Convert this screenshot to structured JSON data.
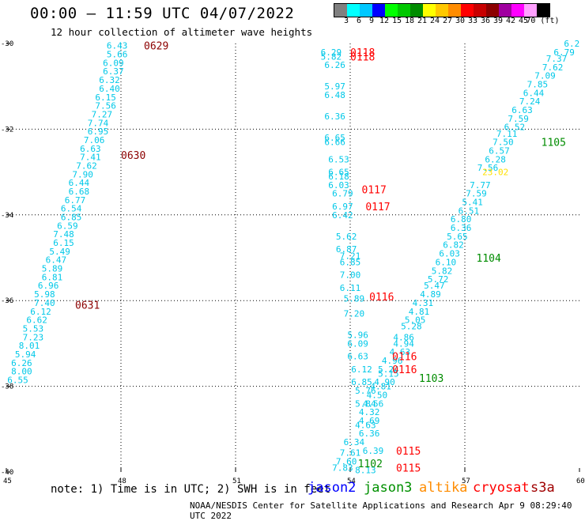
{
  "header": {
    "title": "00:00 – 11:59 UTC 04/07/2022",
    "subtitle": "12 hour collection of altimeter wave heights"
  },
  "colorbar": {
    "colors": [
      "#808080",
      "#00ffff",
      "#00c8ff",
      "#0000ff",
      "#00ff00",
      "#00c800",
      "#008c00",
      "#ffff00",
      "#ffc800",
      "#ff8c00",
      "#ff0000",
      "#c80000",
      "#8c0000",
      "#a000a0",
      "#ff00ff",
      "#ffa0ff",
      "#000000"
    ],
    "labels": [
      "3",
      "6",
      "9",
      "12",
      "15",
      "18",
      "21",
      "24",
      "27",
      "30",
      "33",
      "36",
      "39",
      "42",
      "45",
      "70 (ft)"
    ]
  },
  "footer": {
    "note": "note:  1) Time is in UTC;  2) SWH is in feet",
    "credit": "NOAA/NESDIS Center for Satellite Applications and Research   Apr  9 08:29:40 UTC 2022",
    "legend": [
      {
        "label": "jason2",
        "color": "#0000ff"
      },
      {
        "label": "jason3",
        "color": "#009000"
      },
      {
        "label": "altika",
        "color": "#ff8c00"
      },
      {
        "label": "cryosat",
        "color": "#ff0000"
      },
      {
        "label": "s3a",
        "color": "#a00000"
      }
    ]
  },
  "chart_data": {
    "type": "scatter",
    "xlim": [
      45,
      60
    ],
    "ylim": [
      -40,
      -30
    ],
    "x_ticks": [
      "45",
      "48",
      "51",
      "54",
      "57",
      "60"
    ],
    "y_ticks": [
      "-30",
      "-32",
      "-34",
      "-36",
      "-38",
      "-40"
    ],
    "grid": true,
    "colors": {
      "low": "#00c8e8",
      "mid": "#ffe000",
      "s3a": "#8c0000",
      "cryosat": "#ff0000",
      "jason3": "#008c00"
    },
    "time_labels": [
      {
        "text": "0629",
        "x": 48.6,
        "y": -30.05,
        "sat": "s3a"
      },
      {
        "text": "0630",
        "x": 48.0,
        "y": -32.6,
        "sat": "s3a"
      },
      {
        "text": "0631",
        "x": 46.8,
        "y": -36.1,
        "sat": "s3a"
      },
      {
        "text": "0118",
        "x": 54.0,
        "y": -30.2,
        "sat": "cryosat"
      },
      {
        "text": "0118",
        "x": 54.0,
        "y": -30.3,
        "sat": "cryosat"
      },
      {
        "text": "0117",
        "x": 54.3,
        "y": -33.4,
        "sat": "cryosat"
      },
      {
        "text": "0117",
        "x": 54.4,
        "y": -33.8,
        "sat": "cryosat"
      },
      {
        "text": "0116",
        "x": 54.5,
        "y": -35.9,
        "sat": "cryosat"
      },
      {
        "text": "0116",
        "x": 55.1,
        "y": -37.3,
        "sat": "cryosat"
      },
      {
        "text": "0116",
        "x": 55.1,
        "y": -37.6,
        "sat": "cryosat"
      },
      {
        "text": "0115",
        "x": 55.2,
        "y": -39.5,
        "sat": "cryosat"
      },
      {
        "text": "0115",
        "x": 55.2,
        "y": -39.9,
        "sat": "cryosat"
      },
      {
        "text": "1105",
        "x": 59.0,
        "y": -32.3,
        "sat": "jason3"
      },
      {
        "text": "1104",
        "x": 57.3,
        "y": -35.0,
        "sat": "jason3"
      },
      {
        "text": "1103",
        "x": 55.8,
        "y": -37.8,
        "sat": "jason3"
      },
      {
        "text": "1102",
        "x": 54.2,
        "y": -39.8,
        "sat": "jason3"
      }
    ],
    "tracks": [
      {
        "sat": "s3a",
        "points": [
          [
            "6.43",
            47.9,
            -30.05
          ],
          [
            "5.66",
            47.9,
            -30.25
          ],
          [
            "6.09",
            47.8,
            -30.45
          ],
          [
            "6.37",
            47.8,
            -30.65
          ],
          [
            "6.32",
            47.7,
            -30.85
          ],
          [
            "6.40",
            47.7,
            -31.05
          ],
          [
            "6.15",
            47.6,
            -31.25
          ],
          [
            "7.56",
            47.6,
            -31.45
          ],
          [
            "7.27",
            47.5,
            -31.65
          ],
          [
            "7.74",
            47.4,
            -31.85
          ],
          [
            "6.95",
            47.4,
            -32.05
          ],
          [
            "7.06",
            47.3,
            -32.25
          ],
          [
            "6.63",
            47.2,
            -32.45
          ],
          [
            "7.41",
            47.2,
            -32.65
          ],
          [
            "7.62",
            47.1,
            -32.85
          ],
          [
            "7.90",
            47.0,
            -33.05
          ],
          [
            "6.44",
            46.9,
            -33.25
          ],
          [
            "6.68",
            46.9,
            -33.45
          ],
          [
            "6.77",
            46.8,
            -33.65
          ],
          [
            "6.54",
            46.7,
            -33.85
          ],
          [
            "6.85",
            46.7,
            -34.05
          ],
          [
            "6.59",
            46.6,
            -34.25
          ],
          [
            "7.48",
            46.5,
            -34.45
          ],
          [
            "6.15",
            46.5,
            -34.65
          ],
          [
            "5.49",
            46.4,
            -34.85
          ],
          [
            "6.47",
            46.3,
            -35.05
          ],
          [
            "5.89",
            46.2,
            -35.25
          ],
          [
            "6.81",
            46.2,
            -35.45
          ],
          [
            "6.96",
            46.1,
            -35.65
          ],
          [
            "5.98",
            46.0,
            -35.85
          ],
          [
            "7.40",
            46.0,
            -36.05
          ],
          [
            "6.12",
            45.9,
            -36.25
          ],
          [
            "6.62",
            45.8,
            -36.45
          ],
          [
            "5.53",
            45.7,
            -36.65
          ],
          [
            "7.23",
            45.7,
            -36.85
          ],
          [
            "8.01",
            45.6,
            -37.05
          ],
          [
            "5.94",
            45.5,
            -37.25
          ],
          [
            "6.26",
            45.4,
            -37.45
          ],
          [
            "8.00",
            45.4,
            -37.65
          ],
          [
            "6.55",
            45.3,
            -37.85
          ]
        ]
      },
      {
        "sat": "cryosat",
        "points": [
          [
            "6.29",
            53.5,
            -30.2
          ],
          [
            "5.82",
            53.5,
            -30.3
          ],
          [
            "6.26",
            53.6,
            -30.5
          ],
          [
            "5.97",
            53.6,
            -31.0
          ],
          [
            "6.48",
            53.6,
            -31.2
          ],
          [
            "6.36",
            53.6,
            -31.7
          ],
          [
            "6.65",
            53.6,
            -32.2
          ],
          [
            "6.66",
            53.6,
            -32.3
          ],
          [
            "6.53",
            53.7,
            -32.7
          ],
          [
            "6.65",
            53.7,
            -33.0
          ],
          [
            "6.18",
            53.7,
            -33.1
          ],
          [
            "6.03",
            53.7,
            -33.3
          ],
          [
            "6.79",
            53.8,
            -33.5
          ],
          [
            "6.97",
            53.8,
            -33.8
          ],
          [
            "6.42",
            53.8,
            -34.0
          ],
          [
            "5.62",
            53.9,
            -34.5
          ],
          [
            "6.87",
            53.9,
            -34.8
          ],
          [
            "7.21",
            54.0,
            -34.95
          ],
          [
            "6.85",
            54.0,
            -35.1
          ],
          [
            "7.00",
            54.0,
            -35.4
          ],
          [
            "6.11",
            54.0,
            -35.7
          ],
          [
            "5.89",
            54.1,
            -35.95
          ],
          [
            "7.20",
            54.1,
            -36.3
          ],
          [
            "5.96",
            54.2,
            -36.8
          ],
          [
            "6.09",
            54.2,
            -37.0
          ],
          [
            "6.63",
            54.2,
            -37.3
          ],
          [
            "6.12",
            54.3,
            -37.6
          ],
          [
            "6.85",
            54.3,
            -37.9
          ],
          [
            "5.76",
            54.4,
            -38.1
          ],
          [
            "5.84",
            54.4,
            -38.4
          ],
          [
            "4.69",
            54.5,
            -38.8
          ],
          [
            "6.36",
            54.5,
            -39.1
          ],
          [
            "6.34",
            54.1,
            -39.3
          ],
          [
            "7.61",
            54.0,
            -39.55
          ],
          [
            "7.60",
            53.9,
            -39.75
          ],
          [
            "7.83",
            53.8,
            -39.9
          ]
        ]
      },
      {
        "sat": "jason3",
        "points": [
          [
            "6.2",
            59.8,
            -30.0
          ],
          [
            "6.79",
            59.6,
            -30.2
          ],
          [
            "7.37",
            59.4,
            -30.35
          ],
          [
            "7.62",
            59.3,
            -30.55
          ],
          [
            "7.09",
            59.1,
            -30.75
          ],
          [
            "7.85",
            58.9,
            -30.95
          ],
          [
            "6.44",
            58.8,
            -31.15
          ],
          [
            "7.24",
            58.7,
            -31.35
          ],
          [
            "6.63",
            58.5,
            -31.55
          ],
          [
            "7.59",
            58.4,
            -31.75
          ],
          [
            "6.52",
            58.3,
            -31.95
          ],
          [
            "7.11",
            58.1,
            -32.1
          ],
          [
            "7.50",
            58.0,
            -32.3
          ],
          [
            "6.57",
            57.9,
            -32.5
          ],
          [
            "6.28",
            57.8,
            -32.7
          ],
          [
            "7.56",
            57.6,
            -32.9
          ],
          [
            "7.77",
            57.4,
            -33.3
          ],
          [
            "7.59",
            57.3,
            -33.5
          ],
          [
            "5.41",
            57.2,
            -33.7
          ],
          [
            "6.51",
            57.1,
            -33.9
          ],
          [
            "6.80",
            56.9,
            -34.1
          ],
          [
            "6.36",
            56.9,
            -34.3
          ],
          [
            "5.65",
            56.8,
            -34.5
          ],
          [
            "6.82",
            56.7,
            -34.7
          ],
          [
            "6.03",
            56.6,
            -34.9
          ],
          [
            "6.10",
            56.5,
            -35.1
          ],
          [
            "5.82",
            56.4,
            -35.3
          ],
          [
            "5.72",
            56.3,
            -35.5
          ],
          [
            "5.47",
            56.2,
            -35.65
          ],
          [
            "4.89",
            56.1,
            -35.85
          ],
          [
            "4.31",
            55.9,
            -36.05
          ],
          [
            "4.81",
            55.8,
            -36.25
          ],
          [
            "5.05",
            55.7,
            -36.45
          ],
          [
            "5.28",
            55.6,
            -36.6
          ],
          [
            "4.86",
            55.4,
            -36.85
          ],
          [
            "4.94",
            55.4,
            -37.0
          ],
          [
            "4.63",
            55.3,
            -37.2
          ],
          [
            "4.96",
            55.1,
            -37.4
          ],
          [
            "5.24",
            55.0,
            -37.6
          ],
          [
            "5.15",
            55.0,
            -37.7
          ],
          [
            "4.90",
            54.9,
            -37.9
          ],
          [
            "4.81",
            54.8,
            -38.0
          ],
          [
            "4.50",
            54.7,
            -38.2
          ],
          [
            "4.56",
            54.6,
            -38.4
          ],
          [
            "4.32",
            54.5,
            -38.6
          ],
          [
            "4.63",
            54.4,
            -38.9
          ],
          [
            "6.39",
            54.6,
            -39.5
          ],
          [
            "8.13",
            54.4,
            -39.95
          ]
        ]
      },
      {
        "sat": "altika",
        "points": [
          [
            "23.02",
            57.8,
            -33.0
          ]
        ]
      }
    ]
  }
}
